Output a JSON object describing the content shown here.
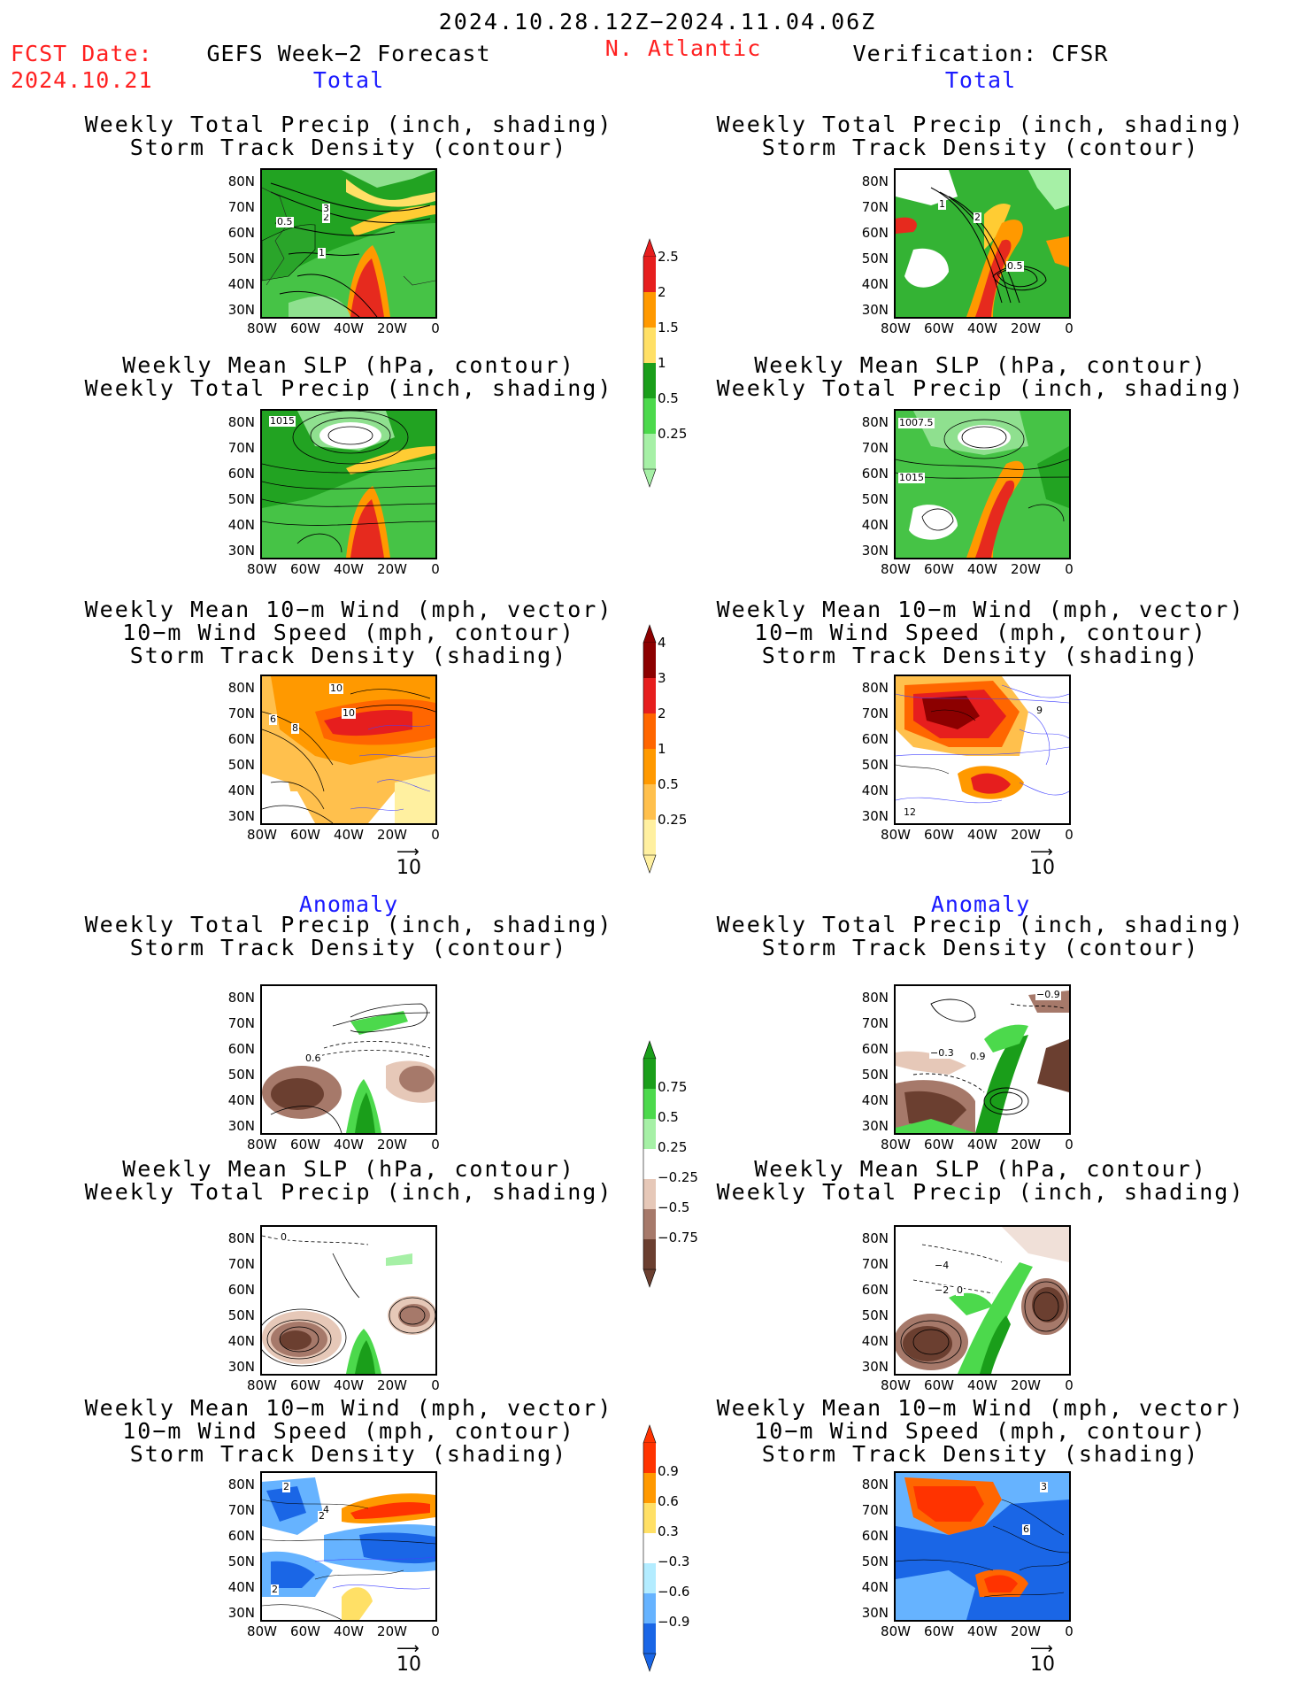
{
  "header": {
    "date_range": "2024.10.28.12Z−2024.11.04.06Z",
    "fcst_label": "FCST Date:",
    "fcst_date": "2024.10.21",
    "model": "GEFS Week−2 Forecast",
    "region": "N. Atlantic",
    "verification": "Verification: CFSR"
  },
  "sections": {
    "total": "Total",
    "anomaly": "Anomaly"
  },
  "titles": {
    "precip_track": [
      "Weekly Total Precip (inch, shading)",
      "Storm Track Density (contour)"
    ],
    "slp_precip": [
      "Weekly Mean SLP (hPa, contour)",
      "Weekly Total Precip (inch, shading)"
    ],
    "wind_track": [
      "Weekly Mean 10−m Wind (mph, vector)",
      "10−m Wind Speed (mph, contour)",
      "Storm Track Density (shading)"
    ]
  },
  "axes": {
    "lat_ticks": [
      "80N",
      "70N",
      "60N",
      "50N",
      "40N",
      "30N"
    ],
    "lon_ticks": [
      "80W",
      "60W",
      "40W",
      "20W",
      "0"
    ]
  },
  "vector_ref": "10",
  "colorbars": {
    "precip_total": {
      "labels": [
        "2.5",
        "2",
        "1.5",
        "1",
        "0.5",
        "0.25"
      ],
      "colors": [
        "#e61e1e",
        "#ff9900",
        "#ffe066",
        "#1a9e1a",
        "#4cd94c",
        "#a6f0a6"
      ]
    },
    "track_total": {
      "labels": [
        "4",
        "3",
        "2",
        "1",
        "0.5",
        "0.25"
      ],
      "colors": [
        "#8c0000",
        "#e61e1e",
        "#ff6600",
        "#ff9900",
        "#ffc04d",
        "#fff0a0"
      ]
    },
    "precip_anom": {
      "labels": [
        "0.75",
        "0.5",
        "0.25",
        "−0.25",
        "−0.5",
        "−0.75"
      ],
      "colors": [
        "#1a9e1a",
        "#4cd94c",
        "#a6f0a6",
        "#ffffff",
        "#e6c8b8",
        "#a6796a",
        "#6b3f30"
      ]
    },
    "track_anom": {
      "labels": [
        "0.9",
        "0.6",
        "0.3",
        "−0.3",
        "−0.6",
        "−0.9"
      ],
      "colors": [
        "#ff3300",
        "#ff9900",
        "#ffe066",
        "#ffffff",
        "#b3ecff",
        "#66b3ff",
        "#1a66e6"
      ]
    }
  },
  "contour_labels": {
    "fc_total_precip": [
      "0.5",
      "1",
      "2",
      "3"
    ],
    "vf_total_precip": [
      "1",
      "2",
      "0.5"
    ],
    "fc_total_slp": [
      "1015"
    ],
    "vf_total_slp": [
      "1007.5",
      "1015"
    ],
    "fc_total_wind": [
      "10",
      "6",
      "8",
      "10"
    ],
    "vf_total_wind": [
      "9",
      "12"
    ],
    "fc_anom_precip": [
      "0.6"
    ],
    "vf_anom_precip": [
      "−0.9",
      "−0.3",
      "0.9"
    ],
    "fc_anom_slp": [
      "0"
    ],
    "vf_anom_slp": [
      "−4",
      "−2",
      "0"
    ],
    "fc_anom_wind": [
      "2",
      "4",
      "2",
      "2"
    ],
    "vf_anom_wind": [
      "3",
      "6"
    ]
  }
}
